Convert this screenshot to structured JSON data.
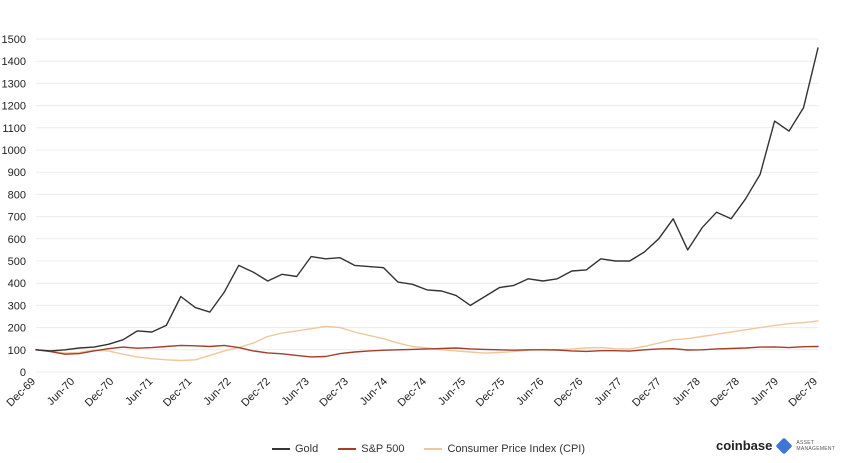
{
  "chart_data": {
    "type": "line",
    "title": "",
    "xlabel": "",
    "ylabel": "",
    "ylim": [
      0,
      1500
    ],
    "yticks": [
      0,
      100,
      200,
      300,
      400,
      500,
      600,
      700,
      800,
      900,
      1000,
      1100,
      1200,
      1300,
      1400,
      1500
    ],
    "x_tick_labels": [
      "Dec-69",
      "Jun-70",
      "Dec-70",
      "Jun-71",
      "Dec-71",
      "Jun-72",
      "Dec-72",
      "Jun-73",
      "Dec-73",
      "Jun-74",
      "Dec-74",
      "Jun-75",
      "Dec-75",
      "Jun-76",
      "Dec-76",
      "Jun-77",
      "Dec-77",
      "Jun-78",
      "Dec-78",
      "Jun-79",
      "Dec-79"
    ],
    "grid": true,
    "legend_position": "bottom-center",
    "series": [
      {
        "name": "Gold",
        "color": "#333333",
        "values": [
          100,
          95,
          100,
          108,
          112,
          125,
          145,
          185,
          180,
          210,
          340,
          290,
          270,
          360,
          480,
          450,
          410,
          440,
          430,
          520,
          510,
          515,
          480,
          475,
          470,
          405,
          395,
          370,
          365,
          345,
          300,
          340,
          380,
          390,
          420,
          410,
          420,
          455,
          460,
          510,
          500,
          500,
          540,
          600,
          690,
          550,
          650,
          720,
          690,
          780,
          890,
          1130,
          1085,
          1190,
          1460
        ]
      },
      {
        "name": "S&P 500",
        "color": "#a33d2e",
        "values": [
          100,
          92,
          80,
          83,
          95,
          105,
          112,
          107,
          110,
          115,
          120,
          118,
          115,
          120,
          110,
          95,
          86,
          82,
          75,
          68,
          70,
          83,
          90,
          95,
          98,
          100,
          102,
          104,
          106,
          108,
          104,
          102,
          100,
          98,
          100,
          100,
          99,
          95,
          93,
          96,
          96,
          94,
          100,
          104,
          105,
          99,
          100,
          104,
          106,
          108,
          112,
          113,
          110,
          114,
          115
        ]
      },
      {
        "name": "Consumer Price Index (CPI)",
        "color": "#efc79a",
        "values": [
          100,
          95,
          85,
          88,
          98,
          95,
          80,
          68,
          60,
          55,
          52,
          55,
          75,
          95,
          110,
          130,
          160,
          175,
          185,
          195,
          205,
          200,
          180,
          165,
          150,
          130,
          115,
          108,
          100,
          95,
          90,
          85,
          88,
          92,
          98,
          102,
          100,
          104,
          108,
          110,
          105,
          104,
          115,
          130,
          145,
          150,
          160,
          170,
          180,
          190,
          200,
          210,
          218,
          222,
          230
        ]
      }
    ]
  },
  "brand": {
    "name": "coinbase",
    "sub_line1": "ASSET",
    "sub_line2": "MANAGEMENT",
    "mark_color": "#3f74d8"
  }
}
